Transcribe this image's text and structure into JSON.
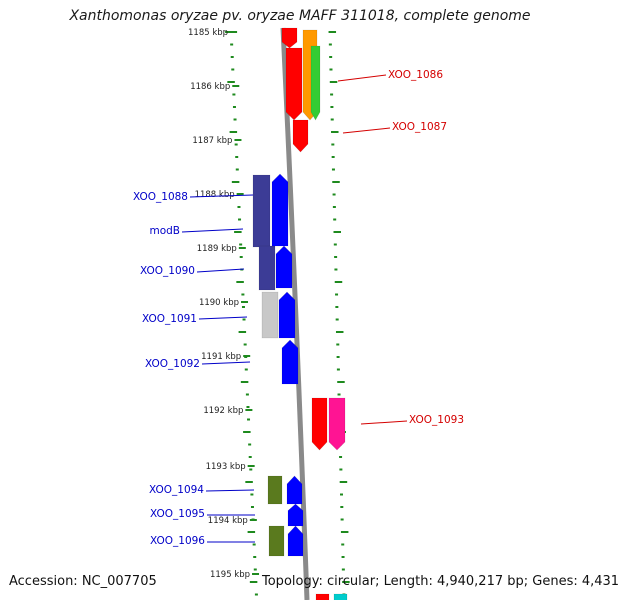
{
  "header": {
    "title": "Xanthomonas oryzae pv. oryzae MAFF 311018, complete genome"
  },
  "footer": {
    "accession": "Accession: NC_007705",
    "topology": "Topology: circular; Length: 4,940,217 bp; Genes: 4,431"
  },
  "colors": {
    "backbone": "#8a8a8a",
    "tick_green": "#1e8a1e",
    "forward_label": "#d40000",
    "reverse_label": "#0000c8"
  },
  "scale": {
    "ticks": [
      {
        "label": "1185 kbp"
      },
      {
        "label": "1186 kbp"
      },
      {
        "label": "1187 kbp"
      },
      {
        "label": "1188 kbp"
      },
      {
        "label": "1189 kbp"
      },
      {
        "label": "1190 kbp"
      },
      {
        "label": "1191 kbp"
      },
      {
        "label": "1192 kbp"
      },
      {
        "label": "1193 kbp"
      },
      {
        "label": "1194 kbp"
      },
      {
        "label": "1195 kbp"
      }
    ]
  },
  "gene_labels": [
    {
      "name": "XOO_1086",
      "strand": "forward"
    },
    {
      "name": "XOO_1087",
      "strand": "forward"
    },
    {
      "name": "XOO_1088",
      "strand": "reverse"
    },
    {
      "name": "modB",
      "strand": "reverse"
    },
    {
      "name": "XOO_1090",
      "strand": "reverse"
    },
    {
      "name": "XOO_1091",
      "strand": "reverse"
    },
    {
      "name": "XOO_1092",
      "strand": "reverse"
    },
    {
      "name": "XOO_1093",
      "strand": "forward"
    },
    {
      "name": "XOO_1094",
      "strand": "reverse"
    },
    {
      "name": "XOO_1095",
      "strand": "reverse"
    },
    {
      "name": "XOO_1096",
      "strand": "reverse"
    }
  ],
  "feature_colors": {
    "red": "#ff0000",
    "orange": "#ff9900",
    "lime": "#33cc33",
    "navy": "#3c3c96",
    "blue": "#0000ff",
    "grey": "#c8c8c8",
    "magenta": "#ff1493",
    "olive": "#5a7a1e",
    "cyan": "#00cccc"
  }
}
